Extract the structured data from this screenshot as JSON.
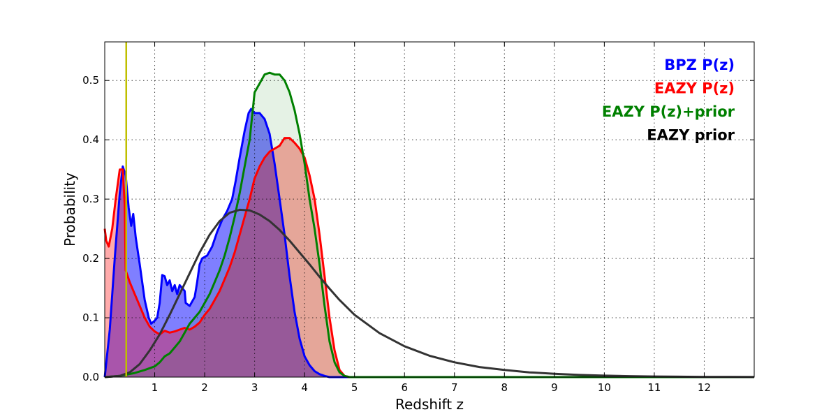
{
  "chart_data": {
    "type": "line",
    "xlabel": "Redshift z",
    "ylabel": "Probability",
    "xlim": [
      0,
      13
    ],
    "ylim": [
      0,
      0.565
    ],
    "xticks": [
      1,
      2,
      3,
      4,
      5,
      6,
      7,
      8,
      9,
      10,
      11,
      12
    ],
    "yticks": [
      0.0,
      0.1,
      0.2,
      0.3,
      0.4,
      0.5
    ],
    "grid": true,
    "legend_position": "top-right",
    "vertical_marker": {
      "x": 0.43,
      "color": "#bfbf00"
    },
    "series": [
      {
        "name": "BPZ P(z)",
        "color": "#0000ff",
        "fill": true,
        "points": [
          [
            0,
            0
          ],
          [
            0.1,
            0.08
          ],
          [
            0.2,
            0.2
          ],
          [
            0.3,
            0.31
          ],
          [
            0.36,
            0.355
          ],
          [
            0.42,
            0.34
          ],
          [
            0.48,
            0.285
          ],
          [
            0.53,
            0.255
          ],
          [
            0.57,
            0.275
          ],
          [
            0.62,
            0.235
          ],
          [
            0.7,
            0.19
          ],
          [
            0.8,
            0.13
          ],
          [
            0.88,
            0.1
          ],
          [
            0.93,
            0.09
          ],
          [
            1.0,
            0.095
          ],
          [
            1.05,
            0.1
          ],
          [
            1.1,
            0.125
          ],
          [
            1.15,
            0.172
          ],
          [
            1.2,
            0.17
          ],
          [
            1.25,
            0.155
          ],
          [
            1.3,
            0.163
          ],
          [
            1.35,
            0.145
          ],
          [
            1.4,
            0.155
          ],
          [
            1.45,
            0.14
          ],
          [
            1.5,
            0.155
          ],
          [
            1.6,
            0.145
          ],
          [
            1.62,
            0.125
          ],
          [
            1.7,
            0.12
          ],
          [
            1.8,
            0.135
          ],
          [
            1.85,
            0.16
          ],
          [
            1.9,
            0.19
          ],
          [
            1.95,
            0.2
          ],
          [
            2.05,
            0.205
          ],
          [
            2.15,
            0.22
          ],
          [
            2.25,
            0.245
          ],
          [
            2.35,
            0.265
          ],
          [
            2.45,
            0.28
          ],
          [
            2.55,
            0.3
          ],
          [
            2.62,
            0.33
          ],
          [
            2.7,
            0.37
          ],
          [
            2.8,
            0.415
          ],
          [
            2.88,
            0.445
          ],
          [
            2.93,
            0.452
          ],
          [
            3.0,
            0.445
          ],
          [
            3.1,
            0.445
          ],
          [
            3.2,
            0.435
          ],
          [
            3.3,
            0.41
          ],
          [
            3.4,
            0.36
          ],
          [
            3.5,
            0.3
          ],
          [
            3.6,
            0.24
          ],
          [
            3.7,
            0.17
          ],
          [
            3.8,
            0.11
          ],
          [
            3.9,
            0.065
          ],
          [
            4.0,
            0.035
          ],
          [
            4.1,
            0.02
          ],
          [
            4.2,
            0.01
          ],
          [
            4.3,
            0.005
          ],
          [
            4.4,
            0.002
          ],
          [
            4.5,
            0.0
          ],
          [
            5,
            0
          ],
          [
            13,
            0
          ]
        ]
      },
      {
        "name": "EAZY P(z)",
        "color": "#ff0000",
        "fill": true,
        "points": [
          [
            0,
            0.25
          ],
          [
            0.03,
            0.23
          ],
          [
            0.08,
            0.22
          ],
          [
            0.15,
            0.25
          ],
          [
            0.22,
            0.3
          ],
          [
            0.3,
            0.35
          ],
          [
            0.36,
            0.35
          ],
          [
            0.4,
            0.29
          ],
          [
            0.42,
            0.18
          ],
          [
            0.5,
            0.16
          ],
          [
            0.6,
            0.14
          ],
          [
            0.7,
            0.12
          ],
          [
            0.8,
            0.1
          ],
          [
            0.9,
            0.085
          ],
          [
            1.0,
            0.077
          ],
          [
            1.1,
            0.072
          ],
          [
            1.2,
            0.078
          ],
          [
            1.3,
            0.075
          ],
          [
            1.4,
            0.077
          ],
          [
            1.5,
            0.08
          ],
          [
            1.6,
            0.083
          ],
          [
            1.7,
            0.08
          ],
          [
            1.8,
            0.085
          ],
          [
            1.9,
            0.092
          ],
          [
            2.0,
            0.105
          ],
          [
            2.1,
            0.115
          ],
          [
            2.2,
            0.13
          ],
          [
            2.3,
            0.145
          ],
          [
            2.4,
            0.165
          ],
          [
            2.5,
            0.185
          ],
          [
            2.6,
            0.21
          ],
          [
            2.7,
            0.24
          ],
          [
            2.8,
            0.27
          ],
          [
            2.9,
            0.3
          ],
          [
            3.0,
            0.335
          ],
          [
            3.1,
            0.355
          ],
          [
            3.2,
            0.37
          ],
          [
            3.3,
            0.38
          ],
          [
            3.4,
            0.385
          ],
          [
            3.5,
            0.39
          ],
          [
            3.6,
            0.403
          ],
          [
            3.7,
            0.403
          ],
          [
            3.8,
            0.395
          ],
          [
            3.9,
            0.385
          ],
          [
            4.0,
            0.37
          ],
          [
            4.1,
            0.34
          ],
          [
            4.2,
            0.3
          ],
          [
            4.3,
            0.24
          ],
          [
            4.4,
            0.17
          ],
          [
            4.5,
            0.1
          ],
          [
            4.6,
            0.045
          ],
          [
            4.7,
            0.012
          ],
          [
            4.8,
            0.002
          ],
          [
            4.9,
            0.0
          ],
          [
            13,
            0
          ]
        ]
      },
      {
        "name": "EAZY P(z)+prior",
        "color": "#008000",
        "fill": true,
        "points": [
          [
            0,
            0
          ],
          [
            0.3,
            0.002
          ],
          [
            0.6,
            0.007
          ],
          [
            0.8,
            0.012
          ],
          [
            1.0,
            0.018
          ],
          [
            1.1,
            0.025
          ],
          [
            1.2,
            0.035
          ],
          [
            1.3,
            0.04
          ],
          [
            1.4,
            0.05
          ],
          [
            1.5,
            0.06
          ],
          [
            1.6,
            0.075
          ],
          [
            1.7,
            0.09
          ],
          [
            1.8,
            0.1
          ],
          [
            1.9,
            0.11
          ],
          [
            2.0,
            0.125
          ],
          [
            2.1,
            0.14
          ],
          [
            2.2,
            0.16
          ],
          [
            2.3,
            0.18
          ],
          [
            2.4,
            0.205
          ],
          [
            2.5,
            0.235
          ],
          [
            2.6,
            0.27
          ],
          [
            2.7,
            0.31
          ],
          [
            2.8,
            0.355
          ],
          [
            2.9,
            0.4
          ],
          [
            3.0,
            0.48
          ],
          [
            3.1,
            0.495
          ],
          [
            3.2,
            0.51
          ],
          [
            3.3,
            0.513
          ],
          [
            3.4,
            0.51
          ],
          [
            3.5,
            0.51
          ],
          [
            3.6,
            0.5
          ],
          [
            3.7,
            0.48
          ],
          [
            3.8,
            0.45
          ],
          [
            3.9,
            0.41
          ],
          [
            4.0,
            0.36
          ],
          [
            4.1,
            0.3
          ],
          [
            4.2,
            0.25
          ],
          [
            4.3,
            0.19
          ],
          [
            4.4,
            0.12
          ],
          [
            4.5,
            0.06
          ],
          [
            4.6,
            0.025
          ],
          [
            4.7,
            0.008
          ],
          [
            4.8,
            0.002
          ],
          [
            4.9,
            0.0
          ],
          [
            13,
            0
          ]
        ]
      },
      {
        "name": "EAZY prior",
        "color": "#333333",
        "fill": false,
        "points": [
          [
            0,
            0
          ],
          [
            0.3,
            0.002
          ],
          [
            0.5,
            0.008
          ],
          [
            0.7,
            0.022
          ],
          [
            0.9,
            0.045
          ],
          [
            1.1,
            0.072
          ],
          [
            1.3,
            0.105
          ],
          [
            1.5,
            0.14
          ],
          [
            1.7,
            0.175
          ],
          [
            1.9,
            0.21
          ],
          [
            2.1,
            0.24
          ],
          [
            2.3,
            0.263
          ],
          [
            2.5,
            0.277
          ],
          [
            2.7,
            0.282
          ],
          [
            2.9,
            0.281
          ],
          [
            3.1,
            0.274
          ],
          [
            3.3,
            0.263
          ],
          [
            3.5,
            0.248
          ],
          [
            3.7,
            0.23
          ],
          [
            3.9,
            0.21
          ],
          [
            4.1,
            0.19
          ],
          [
            4.3,
            0.169
          ],
          [
            4.5,
            0.149
          ],
          [
            4.7,
            0.13
          ],
          [
            5.0,
            0.105
          ],
          [
            5.5,
            0.074
          ],
          [
            6.0,
            0.052
          ],
          [
            6.5,
            0.036
          ],
          [
            7.0,
            0.025
          ],
          [
            7.5,
            0.017
          ],
          [
            8.0,
            0.012
          ],
          [
            8.5,
            0.008
          ],
          [
            9.0,
            0.0055
          ],
          [
            9.5,
            0.0037
          ],
          [
            10.0,
            0.0025
          ],
          [
            10.5,
            0.0017
          ],
          [
            11.0,
            0.0011
          ],
          [
            11.5,
            0.0007
          ],
          [
            12.0,
            0.0004
          ],
          [
            12.5,
            0.0002
          ],
          [
            13,
            0.0001
          ]
        ]
      }
    ]
  }
}
